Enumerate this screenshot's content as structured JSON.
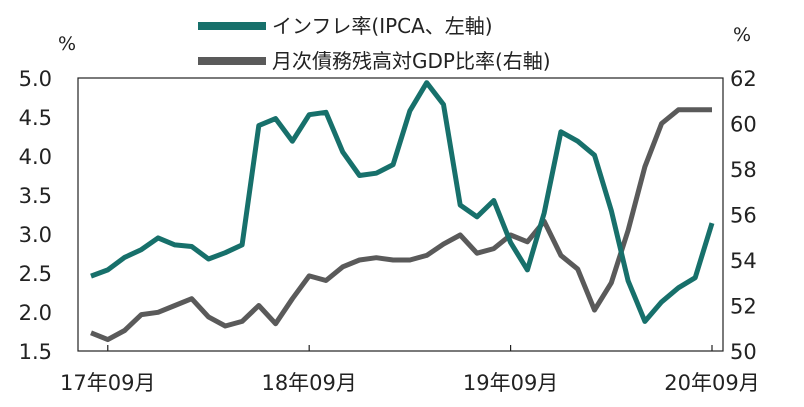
{
  "colors": {
    "inflation": "#17706b",
    "debt": "#5a5a5a",
    "axis": "#222222"
  },
  "chart_data": {
    "type": "line",
    "left_axis": {
      "unit": "%",
      "min": 1.5,
      "max": 5.0,
      "ticks": [
        "1.5",
        "2.0",
        "2.5",
        "3.0",
        "3.5",
        "4.0",
        "4.5",
        "5.0"
      ]
    },
    "right_axis": {
      "unit": "%",
      "min": 50,
      "max": 62,
      "ticks": [
        "50",
        "52",
        "54",
        "56",
        "58",
        "60",
        "62"
      ]
    },
    "x_labels": [
      "17年09月",
      "18年09月",
      "19年09月",
      "20年09月"
    ],
    "legend": [
      {
        "name": "インフレ率(IPCA、左軸)",
        "color_key": "inflation"
      },
      {
        "name": "月次債務残高対GDP比率(右軸)",
        "color_key": "debt"
      }
    ],
    "series": [
      {
        "name": "インフレ率(IPCA、左軸)",
        "axis": "left",
        "x": [
          "17年08月",
          "17年09月",
          "17年10月",
          "17年11月",
          "17年12月",
          "18年01月",
          "18年02月",
          "18年03月",
          "18年04月",
          "18年05月",
          "18年06月",
          "18年07月",
          "18年08月",
          "18年09月",
          "18年10月",
          "18年11月",
          "18年12月",
          "19年01月",
          "19年02月",
          "19年03月",
          "19年04月",
          "19年05月",
          "19年06月",
          "19年07月",
          "19年08月",
          "19年09月",
          "19年10月",
          "19年11月",
          "19年12月",
          "20年01月",
          "20年02月",
          "20年03月",
          "20年04月",
          "20年05月",
          "20年06月",
          "20年07月",
          "20年08月",
          "20年09月"
        ],
        "values": [
          2.46,
          2.54,
          2.7,
          2.8,
          2.95,
          2.86,
          2.84,
          2.68,
          2.76,
          2.86,
          4.39,
          4.48,
          4.19,
          4.53,
          4.56,
          4.05,
          3.75,
          3.78,
          3.89,
          4.58,
          4.94,
          4.66,
          3.37,
          3.22,
          3.43,
          2.89,
          2.54,
          3.27,
          4.31,
          4.19,
          4.01,
          3.3,
          2.4,
          1.88,
          2.13,
          2.31,
          2.44,
          3.14
        ]
      },
      {
        "name": "月次債務残高対GDP比率(右軸)",
        "axis": "right",
        "x": [
          "17年08月",
          "17年09月",
          "17年10月",
          "17年11月",
          "17年12月",
          "18年01月",
          "18年02月",
          "18年03月",
          "18年04月",
          "18年05月",
          "18年06月",
          "18年07月",
          "18年08月",
          "18年09月",
          "18年10月",
          "18年11月",
          "18年12月",
          "19年01月",
          "19年02月",
          "19年03月",
          "19年04月",
          "19年05月",
          "19年06月",
          "19年07月",
          "19年08月",
          "19年09月",
          "19年10月",
          "19年11月",
          "19年12月",
          "20年01月",
          "20年02月",
          "20年03月",
          "20年04月",
          "20年05月",
          "20年06月",
          "20年07月",
          "20年08月",
          "20年09月"
        ],
        "values": [
          50.8,
          50.5,
          50.9,
          51.6,
          51.7,
          52.0,
          52.3,
          51.5,
          51.1,
          51.3,
          52.0,
          51.2,
          52.3,
          53.3,
          53.1,
          53.7,
          54.0,
          54.1,
          54.0,
          54.0,
          54.2,
          54.7,
          55.1,
          54.3,
          54.5,
          55.1,
          54.8,
          55.7,
          54.2,
          53.6,
          51.8,
          53.0,
          55.3,
          58.1,
          60.0,
          60.6,
          60.6,
          60.6
        ]
      }
    ]
  }
}
